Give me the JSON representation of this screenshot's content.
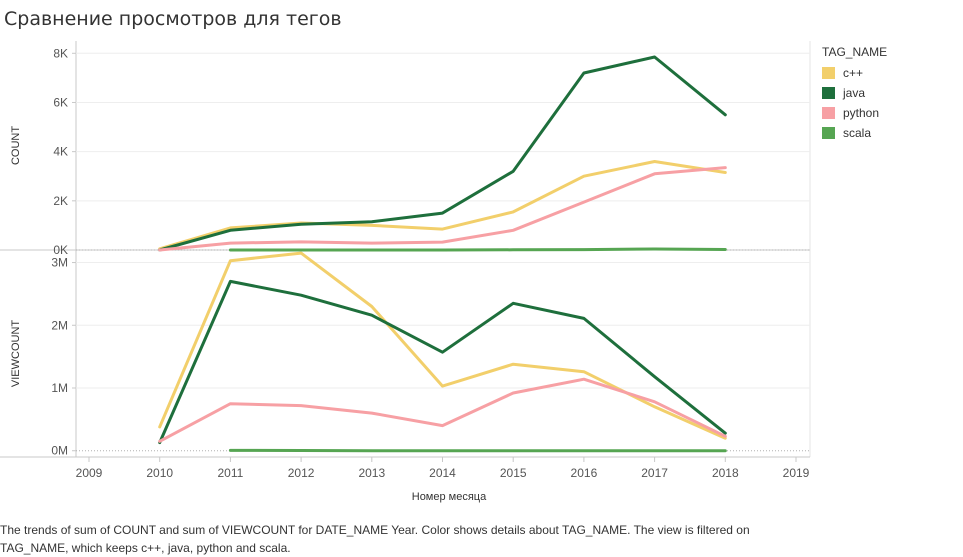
{
  "title": "Сравнение просмотров для тегов",
  "caption": "The trends of sum of COUNT and sum of VIEWCOUNT for DATE_NAME Year.  Color shows details about TAG_NAME. The view is filtered on TAG_NAME, which keeps c++, java, python and scala.",
  "legend": {
    "title": "TAG_NAME",
    "items": [
      {
        "label": "c++",
        "color": "#f2cf6b"
      },
      {
        "label": "java",
        "color": "#1e6f3c"
      },
      {
        "label": "python",
        "color": "#f7a0a4"
      },
      {
        "label": "scala",
        "color": "#56a552"
      }
    ]
  },
  "chart_data": {
    "type": "line",
    "xlabel": "Номер месяца",
    "x_ticks": [
      "2009",
      "2010",
      "2011",
      "2012",
      "2013",
      "2014",
      "2015",
      "2016",
      "2017",
      "2018",
      "2019"
    ],
    "xlim": [
      2009,
      2019
    ],
    "panels": [
      {
        "ylabel": "COUNT",
        "ylim": [
          0,
          8500
        ],
        "y_ticks": [
          {
            "value": 0,
            "label": "0K"
          },
          {
            "value": 2000,
            "label": "2K"
          },
          {
            "value": 4000,
            "label": "4K"
          },
          {
            "value": 6000,
            "label": "6K"
          },
          {
            "value": 8000,
            "label": "8K"
          }
        ],
        "series": [
          {
            "name": "c++",
            "x": [
              2010,
              2011,
              2012,
              2013,
              2014,
              2015,
              2016,
              2017,
              2018
            ],
            "values": [
              50,
              900,
              1100,
              1000,
              850,
              1550,
              3000,
              3600,
              3150
            ]
          },
          {
            "name": "java",
            "x": [
              2010,
              2011,
              2012,
              2013,
              2014,
              2015,
              2016,
              2017,
              2018
            ],
            "values": [
              0,
              800,
              1050,
              1150,
              1500,
              3200,
              7200,
              7850,
              5500
            ]
          },
          {
            "name": "python",
            "x": [
              2010,
              2011,
              2012,
              2013,
              2014,
              2015,
              2016,
              2017,
              2018
            ],
            "values": [
              0,
              280,
              330,
              280,
              320,
              800,
              1950,
              3100,
              3350
            ]
          },
          {
            "name": "scala",
            "x": [
              2011,
              2012,
              2013,
              2014,
              2015,
              2016,
              2017,
              2018
            ],
            "values": [
              0,
              0,
              0,
              0,
              10,
              15,
              40,
              20
            ]
          }
        ]
      },
      {
        "ylabel": "VIEWCOUNT",
        "ylim": [
          -100000,
          3200000
        ],
        "y_ticks": [
          {
            "value": 0,
            "label": "0M"
          },
          {
            "value": 1000000,
            "label": "1M"
          },
          {
            "value": 2000000,
            "label": "2M"
          },
          {
            "value": 3000000,
            "label": "3M"
          }
        ],
        "series": [
          {
            "name": "c++",
            "x": [
              2010,
              2011,
              2012,
              2013,
              2014,
              2015,
              2016,
              2017,
              2018
            ],
            "values": [
              380000,
              3030000,
              3150000,
              2300000,
              1030000,
              1380000,
              1260000,
              700000,
              200000
            ]
          },
          {
            "name": "java",
            "x": [
              2010,
              2011,
              2012,
              2013,
              2014,
              2015,
              2016,
              2017,
              2018
            ],
            "values": [
              130000,
              2700000,
              2480000,
              2160000,
              1570000,
              2350000,
              2110000,
              1180000,
              280000
            ]
          },
          {
            "name": "python",
            "x": [
              2010,
              2011,
              2012,
              2013,
              2014,
              2015,
              2016,
              2017,
              2018
            ],
            "values": [
              150000,
              750000,
              720000,
              600000,
              400000,
              920000,
              1140000,
              780000,
              230000
            ]
          },
          {
            "name": "scala",
            "x": [
              2011,
              2012,
              2013,
              2014,
              2015,
              2016,
              2017,
              2018
            ],
            "values": [
              5000,
              4000,
              0,
              0,
              0,
              0,
              0,
              0
            ]
          }
        ]
      }
    ]
  }
}
